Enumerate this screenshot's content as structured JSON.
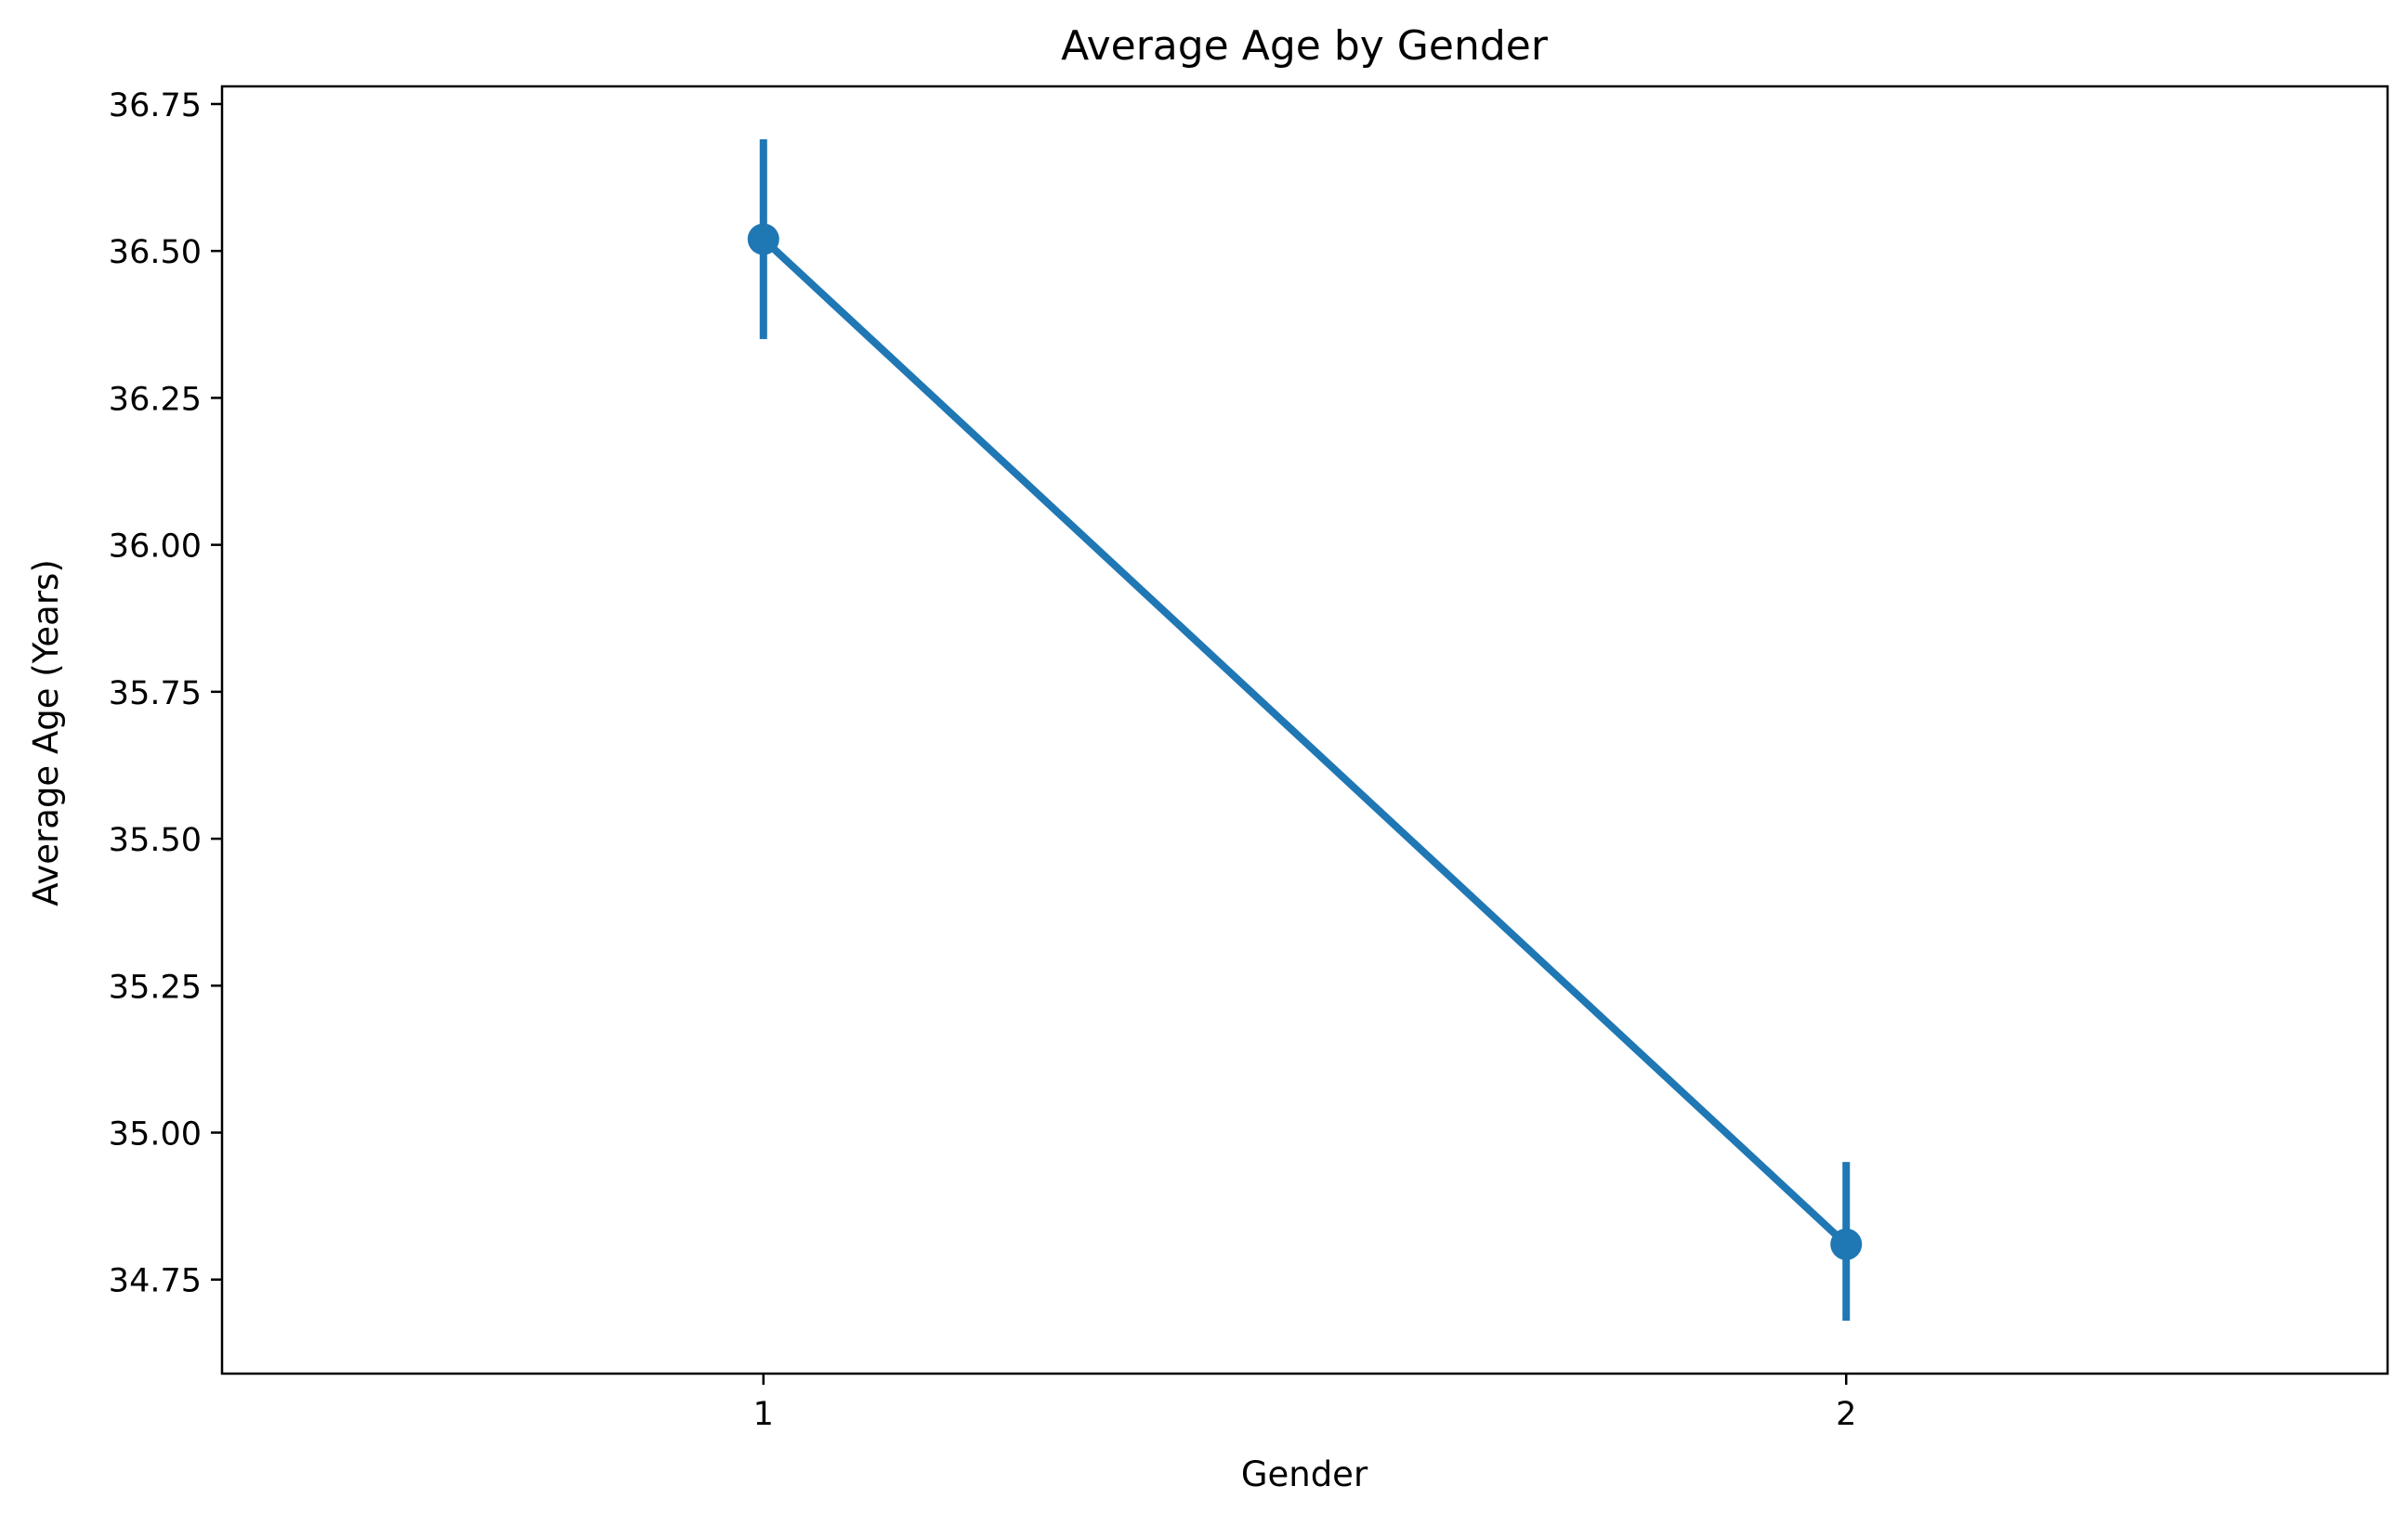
{
  "chart_data": {
    "type": "line",
    "title": "Average Age by Gender",
    "xlabel": "Gender",
    "ylabel": "Average Age (Years)",
    "categories": [
      "1",
      "2"
    ],
    "series": [
      {
        "values": [
          36.52,
          34.81
        ],
        "error_low": [
          36.35,
          34.68
        ],
        "error_high": [
          36.69,
          34.95
        ]
      }
    ],
    "ylim": [
      34.59,
      36.78
    ],
    "yticks": [
      34.75,
      35.0,
      35.25,
      35.5,
      35.75,
      36.0,
      36.25,
      36.5,
      36.75
    ],
    "ytick_labels": [
      "34.75",
      "35.00",
      "35.25",
      "35.50",
      "35.75",
      "36.00",
      "36.25",
      "36.50",
      "36.75"
    ],
    "grid": false,
    "legend": "none",
    "colors": {
      "series": "#1f77b4",
      "axes": "#000000"
    }
  }
}
